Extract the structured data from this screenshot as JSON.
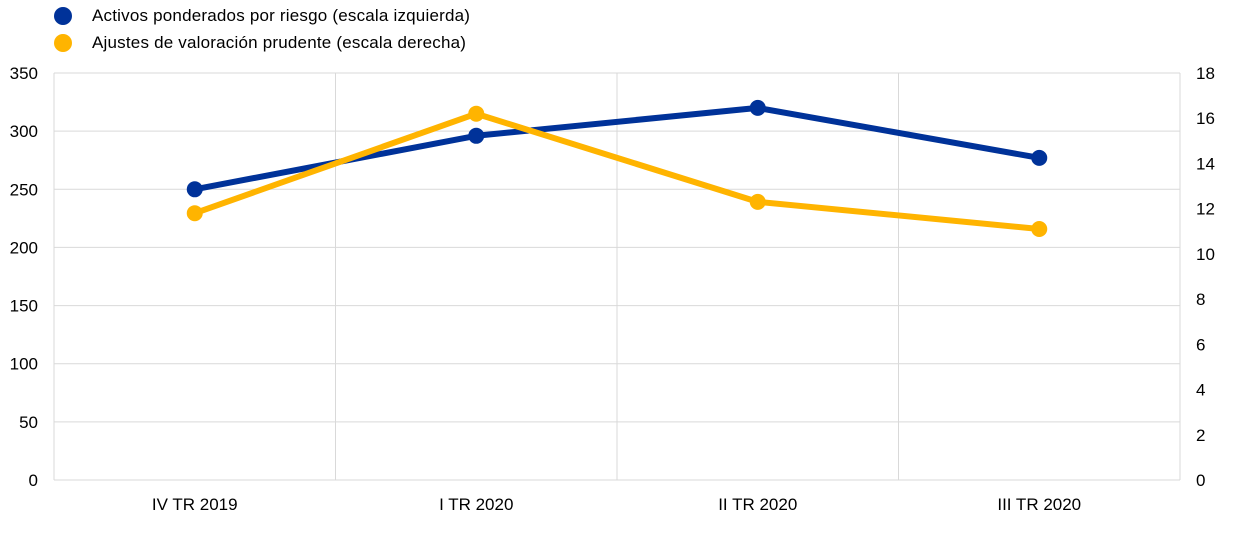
{
  "chart_data": {
    "type": "line",
    "categories": [
      "IV TR 2019",
      "I TR 2020",
      "II TR 2020",
      "III TR 2020"
    ],
    "series": [
      {
        "name": "Activos ponderados por riesgo (escala izquierda)",
        "axis": "left",
        "color": "#003299",
        "values": [
          250,
          296,
          320,
          277
        ]
      },
      {
        "name": "Ajustes de valoración prudente (escala derecha)",
        "axis": "right",
        "color": "#FFB400",
        "values": [
          11.8,
          16.2,
          12.3,
          11.1
        ]
      }
    ],
    "y_left": {
      "ylim": [
        0,
        350
      ],
      "ticks": [
        "0",
        "50",
        "100",
        "150",
        "200",
        "250",
        "300",
        "350"
      ]
    },
    "y_right": {
      "ylim": [
        0,
        18
      ],
      "ticks": [
        "0",
        "2",
        "4",
        "6",
        "8",
        "10",
        "12",
        "14",
        "16",
        "18"
      ]
    },
    "grid": true,
    "legend_position": "top-left"
  }
}
